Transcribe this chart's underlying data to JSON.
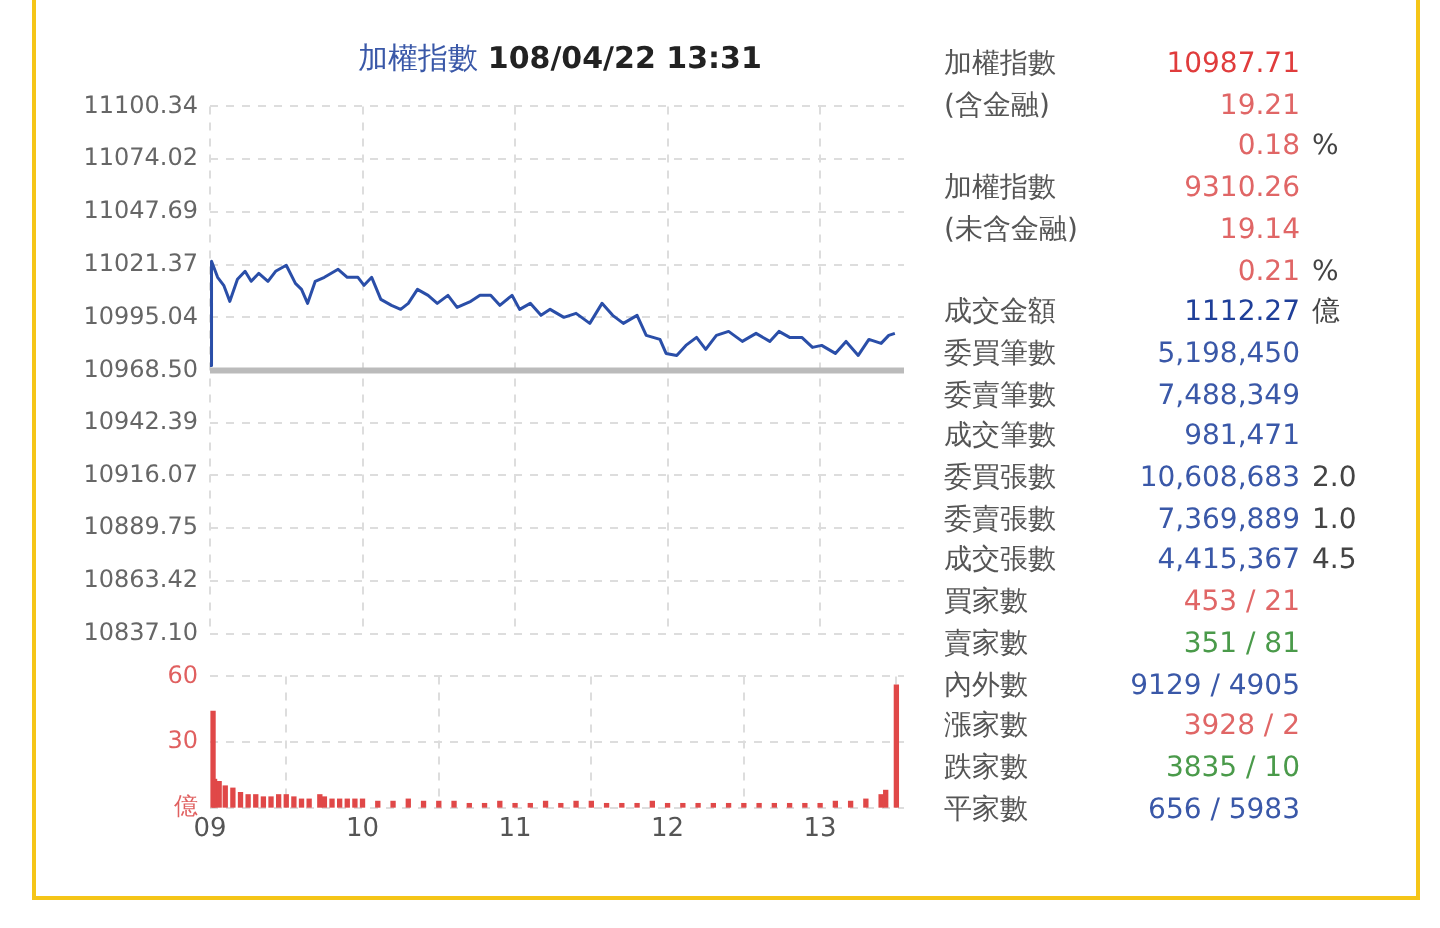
{
  "chart_data": [
    {
      "type": "line",
      "title": "加權指數 108/04/22 13:31",
      "xlim": [
        9,
        13.55
      ],
      "xticks": [
        {
          "value": 9,
          "label": null
        },
        {
          "value": 10,
          "label": null
        },
        {
          "value": 11,
          "label": null
        },
        {
          "value": 12,
          "label": null
        },
        {
          "value": 13,
          "label": null
        }
      ],
      "ylim": [
        10837.1,
        11100.34
      ],
      "yticks": [
        {
          "value": 10837.1,
          "label": "10837.10"
        },
        10863.42,
        10889.75,
        10916.07,
        10942.39,
        {
          "value": 10968.5,
          "label": "10968.50"
        },
        10995.04,
        11021.37,
        11047.69,
        11074.02,
        11100.34
      ],
      "tick_labels": "y",
      "grid": true,
      "legend": false,
      "marker": "none",
      "ref_lines": [
        {
          "axis": "y",
          "value": 10968.5,
          "color": "#bbbbbb"
        }
      ],
      "series": [
        {
          "color": "#2a4ea8",
          "x": [
            9.0,
            9.01,
            9.05,
            9.09,
            9.13,
            9.18,
            9.23,
            9.27,
            9.32,
            9.38,
            9.43,
            9.5,
            9.56,
            9.6,
            9.64,
            9.69,
            9.75,
            9.84,
            9.9,
            9.97,
            10.01,
            10.06,
            10.12,
            10.19,
            10.25,
            10.3,
            10.36,
            10.43,
            10.49,
            10.56,
            10.62,
            10.71,
            10.77,
            10.84,
            10.9,
            10.98,
            11.03,
            11.1,
            11.17,
            11.23,
            11.32,
            11.4,
            11.49,
            11.57,
            11.64,
            11.71,
            11.8,
            11.86,
            11.95,
            11.99,
            12.06,
            12.12,
            12.19,
            12.25,
            12.32,
            12.4,
            12.49,
            12.58,
            12.67,
            12.73,
            12.8,
            12.88,
            12.95,
            13.01,
            13.1,
            13.17,
            13.25,
            13.32,
            13.4,
            13.45,
            13.49
          ],
          "values": [
            10971,
            11023,
            11015,
            11011,
            11003,
            11014,
            11018,
            11013,
            11017,
            11013,
            11018,
            11021,
            11012,
            11009,
            11002,
            11013,
            11015,
            11019,
            11015,
            11015,
            11011,
            11015,
            11004,
            11001,
            10999,
            11002,
            11009,
            11006,
            11002,
            11006,
            11000,
            11003,
            11006,
            11006,
            11001,
            11006,
            10999,
            11002,
            10996,
            10999,
            10995,
            10997,
            10992,
            11002,
            10996,
            10992,
            10996,
            10986,
            10984,
            10977,
            10976,
            10981,
            10985,
            10979,
            10986,
            10988,
            10983,
            10987,
            10983,
            10988,
            10985,
            10985,
            10980,
            10981,
            10977,
            10983,
            10976,
            10984,
            10982,
            10986,
            10987
          ]
        }
      ]
    },
    {
      "type": "bar",
      "xlim": [
        9,
        13.55
      ],
      "xticks": [
        {
          "value": 9,
          "label": "09"
        },
        {
          "value": 10,
          "label": "10"
        },
        {
          "value": 11,
          "label": "11"
        },
        {
          "value": 12,
          "label": "12"
        },
        {
          "value": 13,
          "label": "13"
        }
      ],
      "ylim": [
        0,
        60
      ],
      "yticks": [
        {
          "value": 0,
          "label": "億"
        },
        30,
        60
      ],
      "grid": true,
      "legend": false,
      "series": [
        {
          "color": "#e04848",
          "x": [
            9.02,
            9.03,
            9.06,
            9.1,
            9.15,
            9.2,
            9.25,
            9.3,
            9.35,
            9.4,
            9.45,
            9.5,
            9.55,
            9.6,
            9.65,
            9.72,
            9.75,
            9.8,
            9.85,
            9.9,
            9.95,
            10.0,
            10.1,
            10.2,
            10.3,
            10.4,
            10.5,
            10.6,
            10.7,
            10.8,
            10.9,
            11.0,
            11.1,
            11.2,
            11.3,
            11.4,
            11.5,
            11.6,
            11.7,
            11.8,
            11.9,
            12.0,
            12.1,
            12.2,
            12.3,
            12.4,
            12.5,
            12.6,
            12.7,
            12.8,
            12.9,
            13.0,
            13.1,
            13.2,
            13.3,
            13.4,
            13.43,
            13.5
          ],
          "values": [
            44,
            13,
            12,
            10,
            9,
            7,
            6,
            6,
            5,
            5,
            6,
            6,
            5,
            4,
            4,
            6,
            5,
            4,
            4,
            4,
            4,
            4,
            3,
            3,
            4,
            3,
            3,
            3,
            2,
            2,
            3,
            2,
            2,
            3,
            2,
            3,
            3,
            2,
            2,
            2,
            3,
            2,
            2,
            2,
            2,
            2,
            2,
            2,
            2,
            2,
            2,
            2,
            3,
            3,
            4,
            6,
            8,
            56
          ]
        }
      ]
    },
    {
      "type": "other",
      "categories": [
        "加權指數",
        "(含金融)",
        null,
        "加權指數",
        "(未含金融)",
        null,
        "成交金額",
        "委買筆數",
        "委賣筆數",
        "成交筆數",
        "委買張數",
        "委賣張數",
        "成交張數",
        "買家數",
        "賣家數",
        "內外數",
        "漲家數",
        "跌家數",
        "平家數"
      ],
      "value_labels": [
        "10987.71",
        "19.21",
        "0.18",
        "9310.26",
        "19.14",
        "0.21",
        "1112.27",
        "5,198,450",
        "7,488,349",
        "981,471",
        "10,608,683",
        "7,369,889",
        "4,415,367",
        "453 / 21",
        "351 / 81",
        "9129 / 4905",
        "3928 / 2",
        "3835 / 10",
        "656 / 5983"
      ],
      "colors": [
        "#e03c3c",
        "#e06666",
        "#e06666",
        "#e06666",
        "#e06666",
        "#e06666",
        "#1f3f99",
        "#3a58a8",
        "#3a58a8",
        "#3a58a8",
        "#3a58a8",
        "#3a58a8",
        "#3a58a8",
        "#e06666",
        "#4a9a4a",
        "#3a58a8",
        "#e06666",
        "#4a9a4a",
        "#3a58a8"
      ],
      "annotations": [
        null,
        null,
        "%",
        null,
        null,
        "%",
        "億",
        null,
        null,
        null,
        "2.0",
        "1.0",
        "4.5",
        null,
        null,
        null,
        null,
        null,
        null
      ]
    }
  ]
}
